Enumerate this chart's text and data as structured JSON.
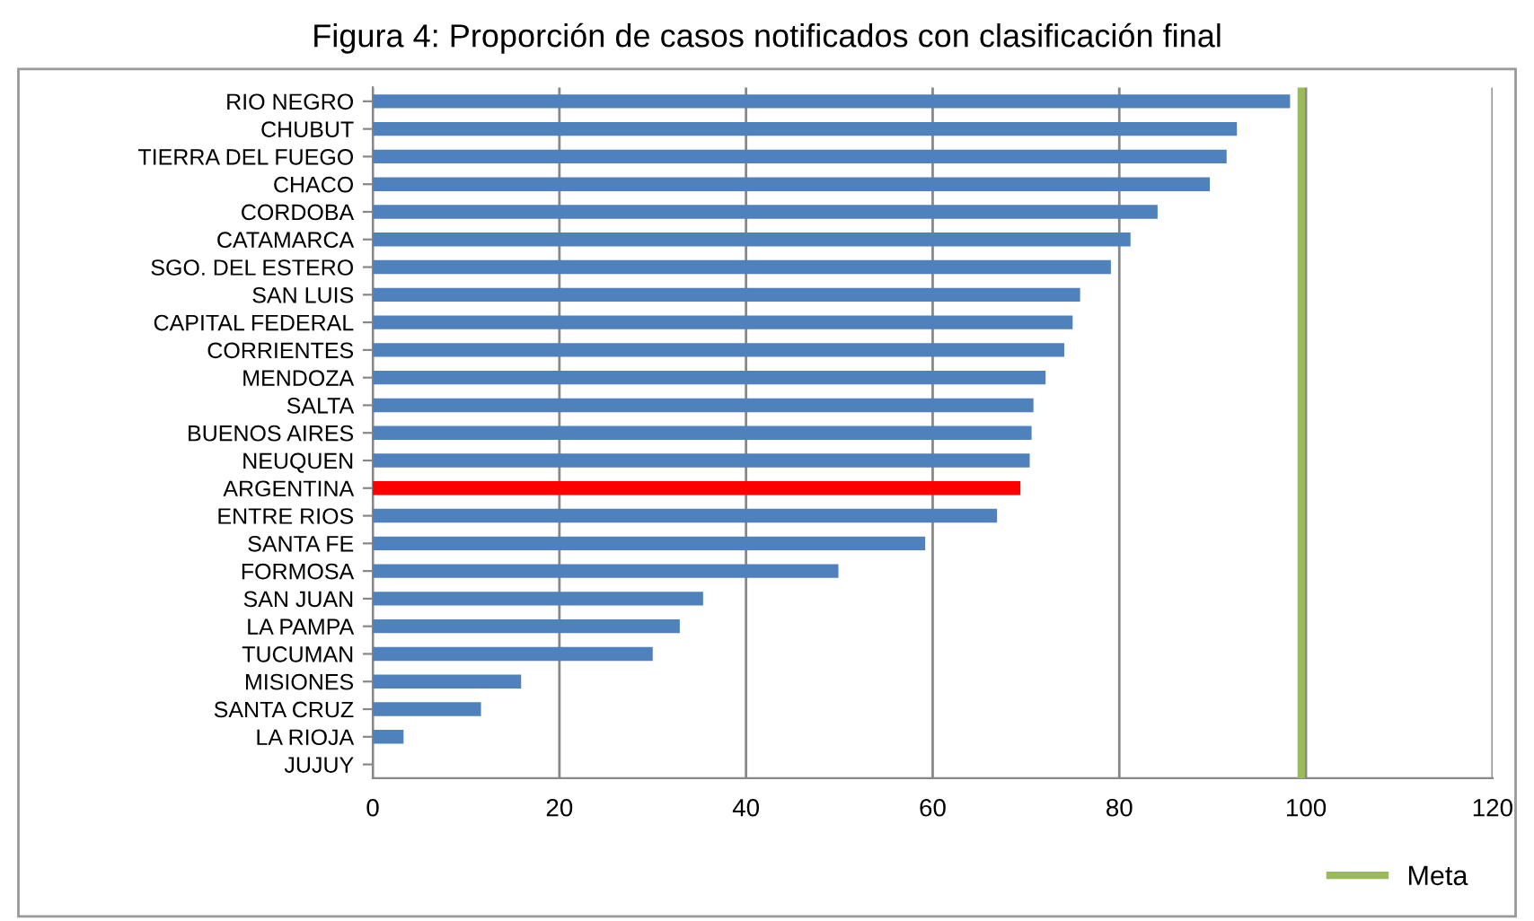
{
  "chart_data": {
    "type": "bar",
    "orientation": "horizontal",
    "title": "Figura 4: Proporción de casos notificados con clasificación final",
    "categories": [
      "RIO NEGRO",
      "CHUBUT",
      "TIERRA DEL FUEGO",
      "CHACO",
      "CORDOBA",
      "CATAMARCA",
      "SGO. DEL ESTERO",
      "SAN LUIS",
      "CAPITAL FEDERAL",
      "CORRIENTES",
      "MENDOZA",
      "SALTA",
      "BUENOS AIRES",
      "NEUQUEN",
      "ARGENTINA",
      "ENTRE RIOS",
      "SANTA FE",
      "FORMOSA",
      "SAN JUAN",
      "LA PAMPA",
      "TUCUMAN",
      "MISIONES",
      "SANTA CRUZ",
      "LA RIOJA",
      "JUJUY"
    ],
    "values": [
      98.3,
      92.6,
      91.5,
      89.7,
      84.1,
      81.2,
      79.1,
      75.8,
      75.0,
      74.1,
      72.1,
      70.8,
      70.6,
      70.4,
      69.4,
      66.9,
      59.2,
      49.9,
      35.4,
      32.9,
      30.0,
      15.9,
      11.6,
      3.3,
      0
    ],
    "colors": [
      "#4f81bd",
      "#4f81bd",
      "#4f81bd",
      "#4f81bd",
      "#4f81bd",
      "#4f81bd",
      "#4f81bd",
      "#4f81bd",
      "#4f81bd",
      "#4f81bd",
      "#4f81bd",
      "#4f81bd",
      "#4f81bd",
      "#4f81bd",
      "#ff0000",
      "#4f81bd",
      "#4f81bd",
      "#4f81bd",
      "#4f81bd",
      "#4f81bd",
      "#4f81bd",
      "#4f81bd",
      "#4f81bd",
      "#4f81bd",
      "#4f81bd"
    ],
    "xlim": [
      0,
      120
    ],
    "xticks": [
      0,
      20,
      40,
      60,
      80,
      100,
      120
    ],
    "grid": "x",
    "legend": "bottom right",
    "ref_lines": [
      {
        "axis": "x",
        "value": 99.5,
        "label": "Meta",
        "color": "#9bbb59"
      }
    ]
  }
}
